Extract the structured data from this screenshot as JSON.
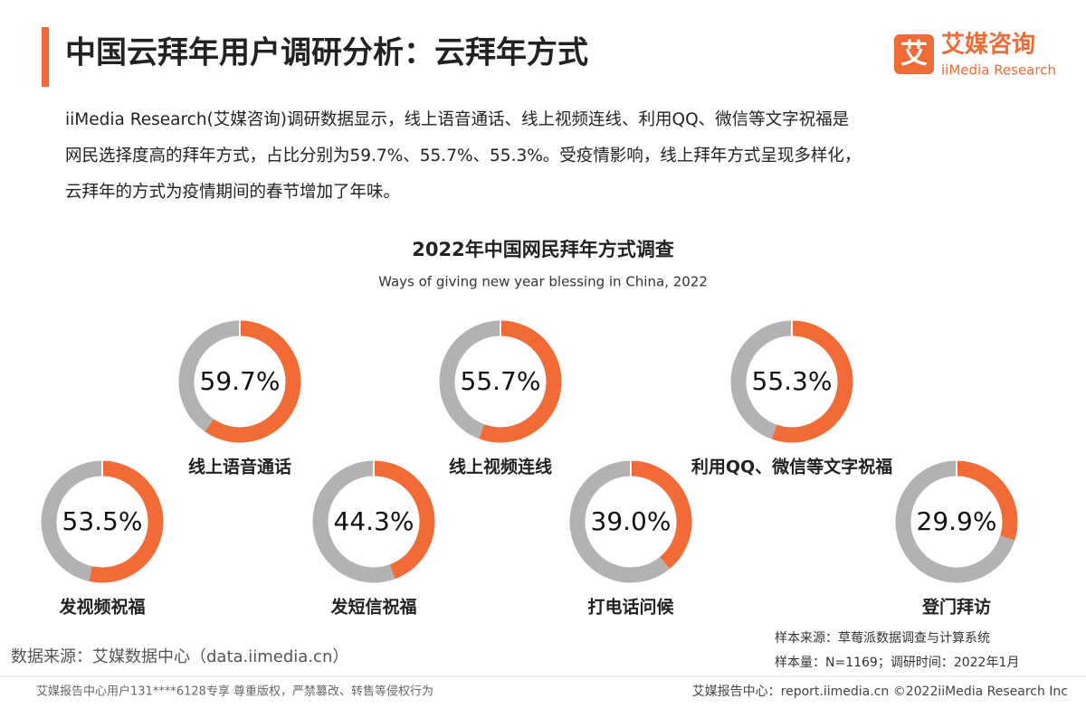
{
  "header": {
    "title": "中国云拜年用户调研分析：云拜年方式",
    "logo_icon": "艾",
    "logo_name": "艾媒咨询",
    "logo_sub": "iiMedia Research"
  },
  "description": [
    "iiMedia Research(艾媒咨询)调研数据显示，线上语音通话、线上视频连线、利用QQ、微信等文字祝福是",
    "网民选择度高的拜年方式，占比分别为59.7%、55.7%、55.3%。受疫情影响，线上拜年方式呈现多样化，",
    "云拜年的方式为疫情期间的春节增加了年味。"
  ],
  "chart_data": {
    "type": "donut",
    "title": "2022年中国网民拜年方式调查",
    "subtitle": "Ways of giving new year blessing in China, 2022",
    "categories": [
      "线上语音通话",
      "线上视频连线",
      "利用QQ、微信等文字祝福",
      "发视频祝福",
      "发短信祝福",
      "打电话问候",
      "登门拜访"
    ],
    "values": [
      59.7,
      55.7,
      55.3,
      53.5,
      44.3,
      39.0,
      29.9
    ],
    "value_labels": [
      "59.7%",
      "55.7%",
      "55.3%",
      "53.5%",
      "44.3%",
      "39.0%",
      "29.9%"
    ],
    "color": "#f26a35",
    "rest_color": "#b3b1b1"
  },
  "source": "数据来源：艾媒数据中心（data.iimedia.cn）",
  "sample_notes": [
    "样本来源：草莓派数据调查与计算系统",
    "样本量：N=1169；调研时间：2022年1月"
  ],
  "footer": {
    "left": "艾媒报告中心用户131****6128专享 尊重版权，严禁篡改、转售等侵权行为",
    "right": "艾媒报告中心：report.iimedia.cn  ©2022iiMedia Research Inc"
  }
}
